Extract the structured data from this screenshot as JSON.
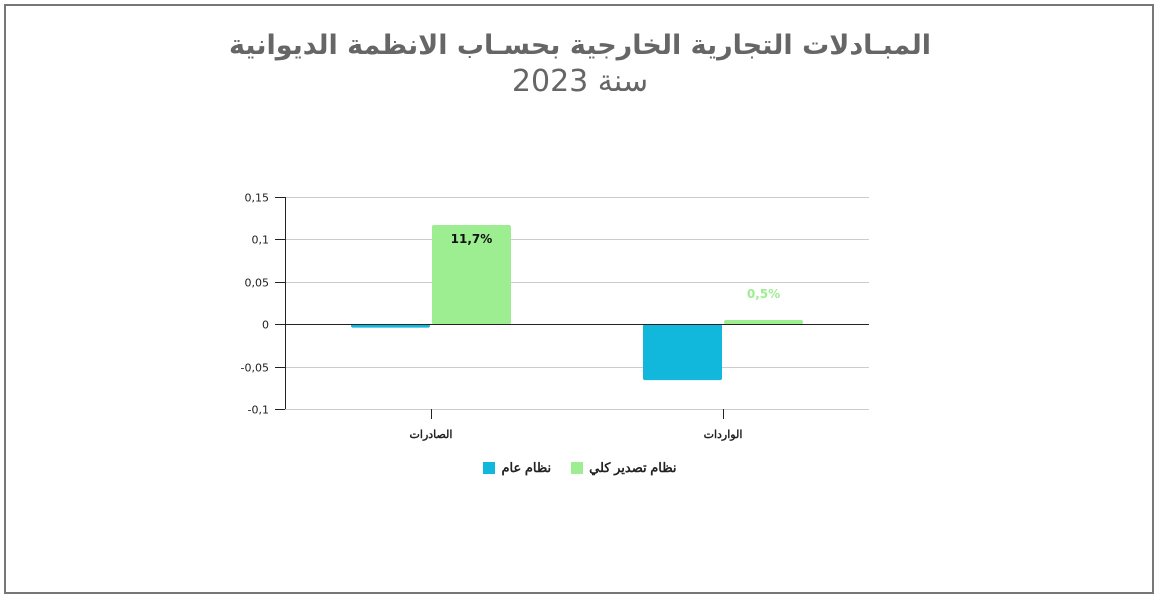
{
  "title": {
    "line1": "المبـادلات التجارية الخارجية بحسـاب الانظمة الديوانية",
    "line2": "سنة 2023"
  },
  "colors": {
    "general_regime": "#12b7dc",
    "total_export_regime": "#9cee91",
    "gridline": "#cccccc",
    "axis": "#222222",
    "title": "#666666",
    "border": "#777777"
  },
  "chart_data": {
    "type": "bar",
    "title": "المبـادلات التجارية الخارجية بحسـاب الانظمة الديوانية سنة 2023",
    "categories": [
      "الصادرات",
      "الواردات"
    ],
    "series": [
      {
        "name": "نظام عام",
        "color": "#12b7dc",
        "values": [
          -0.004,
          -0.066
        ]
      },
      {
        "name": "نظام تصدير كلي",
        "color": "#9cee91",
        "values": [
          0.117,
          0.005
        ]
      }
    ],
    "data_labels": [
      {
        "series": "نظام تصدير كلي",
        "category": "الصادرات",
        "text": "11,7%",
        "color": "#111111"
      },
      {
        "series": "نظام تصدير كلي",
        "category": "الواردات",
        "text": "0,5%",
        "color": "#9cee91"
      }
    ],
    "yticks": [
      "0,15",
      "0,1",
      "0,05",
      "0",
      "-0,05",
      "-0,1"
    ],
    "ytick_values": [
      0.15,
      0.1,
      0.05,
      0,
      -0.05,
      -0.1
    ],
    "ylim": [
      -0.1,
      0.15
    ],
    "xlabel": "",
    "ylabel": "",
    "grid": true,
    "legend_position": "bottom"
  },
  "legend": {
    "items": [
      {
        "label": "نظام تصدير كلي",
        "color": "#9cee91"
      },
      {
        "label": "نظام عام",
        "color": "#12b7dc"
      }
    ]
  }
}
